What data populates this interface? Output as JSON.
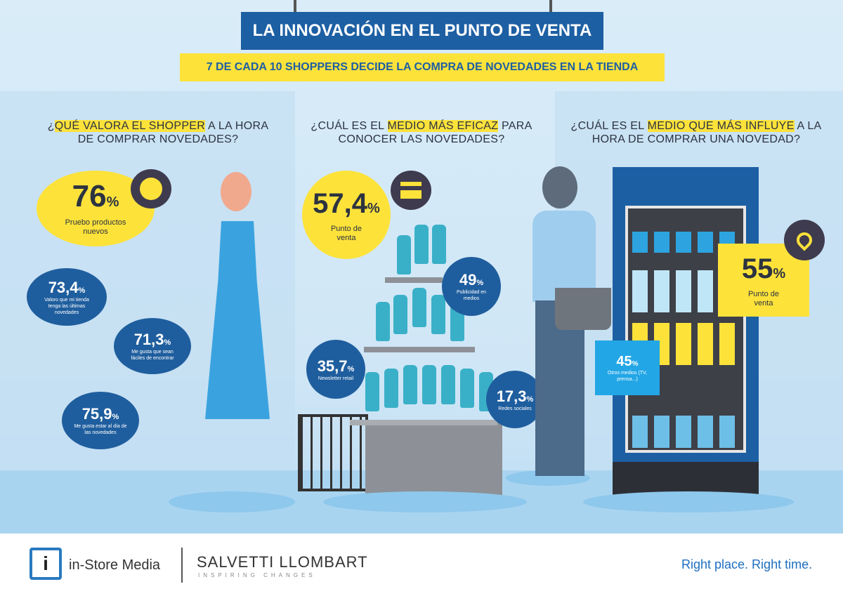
{
  "header": {
    "title": "LA INNOVACIÓN EN EL PUNTO DE VENTA",
    "subtitle": "7 DE CADA 10 SHOPPERS DECIDE LA COMPRA DE NOVEDADES EN LA TIENDA"
  },
  "col1": {
    "q_pre": "¿",
    "q_hl": "QUÉ VALORA EL SHOPPER",
    "q_post": " A LA HORA DE COMPRAR NOVEDADES?",
    "main": {
      "value": "76",
      "unit": "%",
      "label": "Pruebo productos nuevos",
      "icon": "new-badge-icon"
    },
    "items": [
      {
        "value": "73,4",
        "unit": "%",
        "label": "Valoro que mi tienda tenga las últimas novedades"
      },
      {
        "value": "71,3",
        "unit": "%",
        "label": "Me gusta que sean fáciles de encontrar"
      },
      {
        "value": "75,9",
        "unit": "%",
        "label": "Me gusta estar al día de las novedades"
      }
    ]
  },
  "col2": {
    "q_pre": "¿CUÁL ES EL ",
    "q_hl": "MEDIO MÁS EFICAZ",
    "q_post": " PARA CONOCER LAS NOVEDADES?",
    "main": {
      "value": "57,4",
      "unit": "%",
      "label": "Punto de venta",
      "icon": "store-icon"
    },
    "items": [
      {
        "value": "49",
        "unit": "%",
        "label": "Publicidad en medios"
      },
      {
        "value": "35,7",
        "unit": "%",
        "label": "Newsletter retail"
      },
      {
        "value": "17,3",
        "unit": "%",
        "label": "Redes sociales"
      }
    ]
  },
  "col3": {
    "q_pre": "¿CUÁL ES EL ",
    "q_hl": "MEDIO QUE MÁS INFLUYE",
    "q_post": " A LA HORA DE COMPRAR UNA NOVEDAD?",
    "main": {
      "value": "55",
      "unit": "%",
      "label": "Punto de venta",
      "icon": "location-pin-icon"
    },
    "items": [
      {
        "value": "45",
        "unit": "%",
        "label": "Otros medios (TV, prensa...)"
      }
    ]
  },
  "footer": {
    "logo1": "in-Store Media",
    "logo2": "SALVETTI LLOMBART",
    "logo2_tag": "INSPIRING CHANGES",
    "slogan": "Right place. Right time."
  }
}
